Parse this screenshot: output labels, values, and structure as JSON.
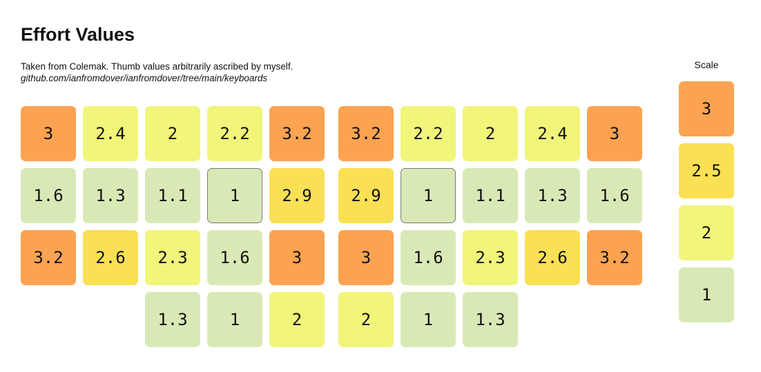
{
  "title": "Effort Values",
  "description": "Taken from Colemak. Thumb values arbitrarily ascribed by myself.",
  "link": "github.com/ianfromdover/ianfromdover/tree/main/keyboards",
  "scale": {
    "label": "Scale",
    "items": [
      {
        "value": "3",
        "color": "#fba350"
      },
      {
        "value": "2.5",
        "color": "#f9e055"
      },
      {
        "value": "2",
        "color": "#f1f57a"
      },
      {
        "value": "1",
        "color": "#d9e9b6"
      }
    ]
  },
  "keyboard": {
    "rows": [
      [
        "3",
        "2.4",
        "2",
        "2.2",
        "3.2",
        "3.2",
        "2.2",
        "2",
        "2.4",
        "3"
      ],
      [
        "1.6",
        "1.3",
        "1.1",
        "1",
        "2.9",
        "2.9",
        "1",
        "1.1",
        "1.3",
        "1.6"
      ],
      [
        "3.2",
        "2.6",
        "2.3",
        "1.6",
        "3",
        "3",
        "1.6",
        "2.3",
        "2.6",
        "3.2"
      ]
    ],
    "thumbs": [
      "1.3",
      "1",
      "2",
      "2",
      "1",
      "1.3"
    ],
    "home_keys": [
      "r1c3",
      "r1c6"
    ]
  }
}
